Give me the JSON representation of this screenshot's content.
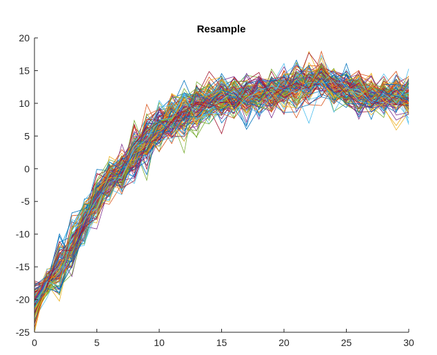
{
  "chart_data": {
    "type": "line",
    "title": "Resample",
    "xlabel": "",
    "ylabel": "",
    "xlim": [
      0,
      30
    ],
    "ylim": [
      -25,
      20
    ],
    "xticks": [
      0,
      5,
      10,
      15,
      20,
      25,
      30
    ],
    "yticks": [
      20,
      15,
      10,
      5,
      0,
      -5,
      -10,
      -15,
      -20,
      -25
    ],
    "xtick_labels": [
      "0",
      "5",
      "10",
      "15",
      "20",
      "25",
      "30"
    ],
    "ytick_labels": [
      "20",
      "15",
      "10",
      "5",
      "0",
      "-5",
      "-10",
      "-15",
      "-20",
      "-25"
    ],
    "grid": false,
    "legend": "none",
    "colors": [
      "#0072BD",
      "#D95319",
      "#EDB120",
      "#7E2F8E",
      "#77AC30",
      "#4DBEEE",
      "#A2142F"
    ],
    "series_count": 120,
    "x": [
      0,
      1,
      2,
      3,
      4,
      5,
      6,
      7,
      8,
      9,
      10,
      11,
      12,
      13,
      14,
      15,
      16,
      17,
      18,
      19,
      20,
      21,
      22,
      23,
      24,
      25,
      26,
      27,
      28,
      29,
      30
    ],
    "mean": [
      -20.5,
      -17.5,
      -15.0,
      -12.0,
      -8.0,
      -4.5,
      -1.5,
      -0.5,
      2.5,
      4.5,
      6.5,
      7.5,
      8.5,
      9.5,
      10.5,
      11.0,
      11.0,
      11.0,
      11.5,
      11.5,
      12.0,
      12.5,
      13.0,
      14.0,
      12.5,
      12.0,
      11.5,
      11.0,
      11.0,
      11.0,
      11.0
    ],
    "spread": [
      1.8,
      0.8,
      1.8,
      2.0,
      1.5,
      1.8,
      1.5,
      1.5,
      1.8,
      1.8,
      1.5,
      1.8,
      1.8,
      1.8,
      1.5,
      1.5,
      1.5,
      1.5,
      1.5,
      1.5,
      1.5,
      1.5,
      1.5,
      1.5,
      1.5,
      1.5,
      1.5,
      1.5,
      1.5,
      1.5,
      1.5
    ]
  }
}
